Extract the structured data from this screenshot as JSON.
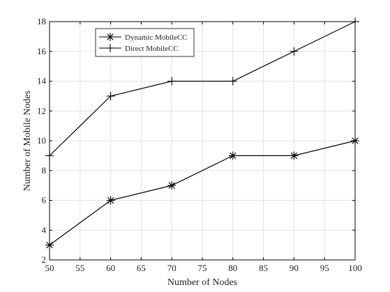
{
  "chart_data": {
    "type": "line",
    "title": "",
    "xlabel": "Number of Nodes",
    "ylabel": "Number of Mobile Nodes",
    "x": [
      50,
      60,
      70,
      80,
      90,
      100
    ],
    "xlim": [
      50,
      100
    ],
    "ylim": [
      2,
      18
    ],
    "xticks": [
      50,
      55,
      60,
      65,
      70,
      75,
      80,
      85,
      90,
      95,
      100
    ],
    "yticks": [
      2,
      4,
      6,
      8,
      10,
      12,
      14,
      16,
      18
    ],
    "grid": true,
    "legend_position": "top-left",
    "series": [
      {
        "name": "Dynamic MobileCC",
        "marker": "asterisk",
        "color": "#000000",
        "values": [
          3,
          6,
          7,
          9,
          9,
          10
        ]
      },
      {
        "name": "Direct MobileCC",
        "marker": "plus",
        "color": "#000000",
        "values": [
          9,
          13,
          14,
          14,
          16,
          18
        ]
      }
    ]
  }
}
